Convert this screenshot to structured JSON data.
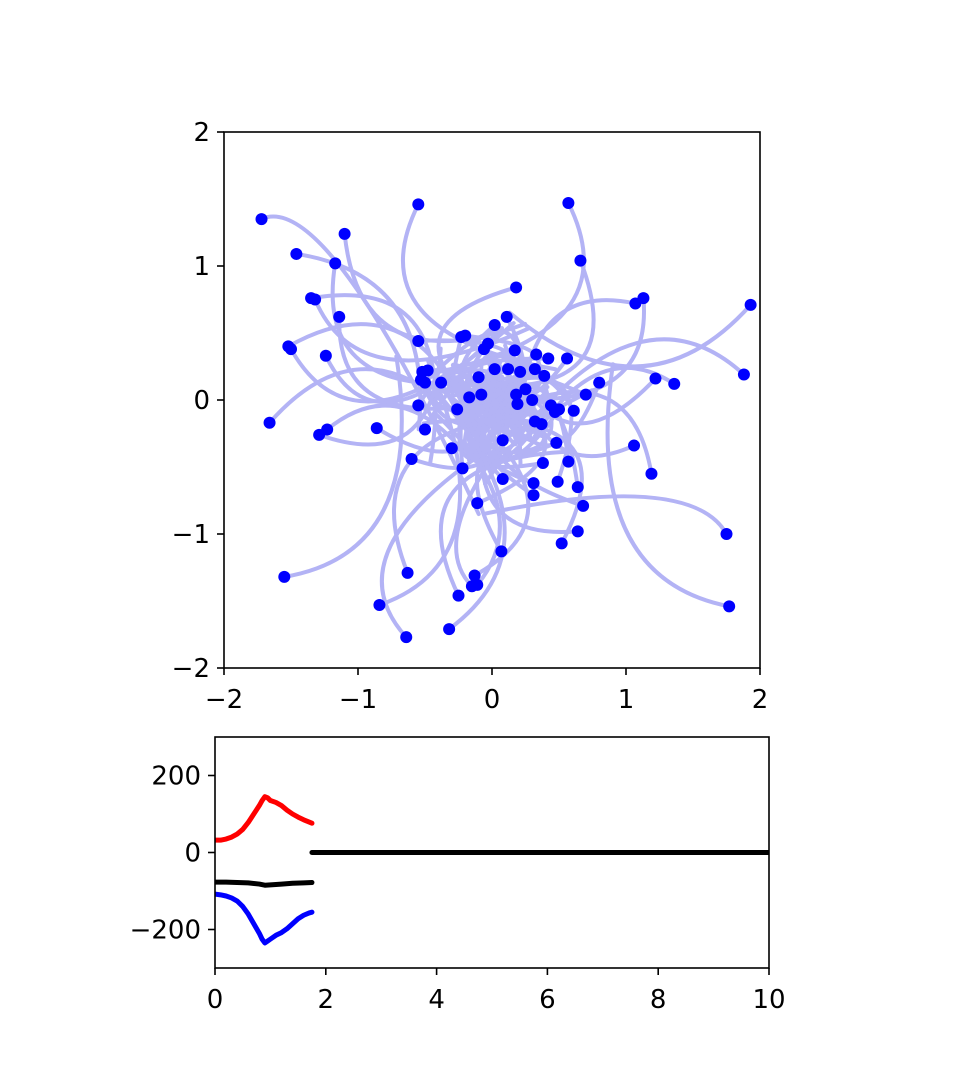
{
  "chart_data": [
    {
      "type": "scatter",
      "title": "",
      "xlabel": "",
      "ylabel": "",
      "xlim": [
        -2,
        2
      ],
      "ylim": [
        -2,
        2
      ],
      "xticks": [
        -2,
        -1,
        0,
        1,
        2
      ],
      "yticks": [
        -2,
        -1,
        0,
        1,
        2
      ],
      "xtick_labels": [
        "−2",
        "−1",
        "0",
        "1",
        "2"
      ],
      "ytick_labels": [
        "−2",
        "−1",
        "0",
        "1",
        "2"
      ],
      "grid": false,
      "trail_color": "#b3b3f5",
      "point_color": "#0000ff",
      "points": [
        [
          -1.72,
          1.35
        ],
        [
          -0.55,
          1.46
        ],
        [
          0.57,
          1.47
        ],
        [
          -1.1,
          1.24
        ],
        [
          -1.46,
          1.09
        ],
        [
          -1.17,
          1.02
        ],
        [
          0.66,
          1.04
        ],
        [
          0.18,
          0.84
        ],
        [
          -1.35,
          0.76
        ],
        [
          -1.32,
          0.75
        ],
        [
          1.13,
          0.76
        ],
        [
          1.07,
          0.72
        ],
        [
          1.93,
          0.71
        ],
        [
          -1.14,
          0.62
        ],
        [
          0.11,
          0.62
        ],
        [
          0.02,
          0.56
        ],
        [
          -1.52,
          0.4
        ],
        [
          -1.5,
          0.38
        ],
        [
          -0.55,
          0.44
        ],
        [
          -0.23,
          0.47
        ],
        [
          -0.2,
          0.48
        ],
        [
          -0.03,
          0.42
        ],
        [
          -0.06,
          0.38
        ],
        [
          -1.24,
          0.33
        ],
        [
          0.33,
          0.34
        ],
        [
          0.42,
          0.31
        ],
        [
          0.56,
          0.31
        ],
        [
          0.17,
          0.37
        ],
        [
          0.02,
          0.23
        ],
        [
          0.12,
          0.23
        ],
        [
          0.21,
          0.21
        ],
        [
          0.32,
          0.23
        ],
        [
          0.39,
          0.18
        ],
        [
          -0.52,
          0.21
        ],
        [
          -0.48,
          0.22
        ],
        [
          -0.53,
          0.15
        ],
        [
          -0.5,
          0.13
        ],
        [
          -0.38,
          0.13
        ],
        [
          -0.1,
          0.17
        ],
        [
          1.88,
          0.19
        ],
        [
          1.22,
          0.16
        ],
        [
          1.36,
          0.12
        ],
        [
          0.8,
          0.13
        ],
        [
          0.25,
          0.08
        ],
        [
          0.18,
          0.04
        ],
        [
          -0.08,
          0.04
        ],
        [
          -0.17,
          0.02
        ],
        [
          0.7,
          0.04
        ],
        [
          -0.55,
          -0.04
        ],
        [
          -0.26,
          -0.07
        ],
        [
          0.19,
          -0.03
        ],
        [
          0.3,
          0.0
        ],
        [
          0.44,
          -0.04
        ],
        [
          0.47,
          -0.09
        ],
        [
          0.5,
          -0.07
        ],
        [
          0.61,
          -0.08
        ],
        [
          -1.66,
          -0.17
        ],
        [
          0.32,
          -0.16
        ],
        [
          0.37,
          -0.18
        ],
        [
          -1.29,
          -0.26
        ],
        [
          -1.23,
          -0.22
        ],
        [
          -0.86,
          -0.21
        ],
        [
          -0.5,
          -0.22
        ],
        [
          0.08,
          -0.3
        ],
        [
          0.48,
          -0.32
        ],
        [
          -0.3,
          -0.36
        ],
        [
          1.06,
          -0.34
        ],
        [
          -0.6,
          -0.44
        ],
        [
          0.38,
          -0.47
        ],
        [
          0.57,
          -0.46
        ],
        [
          -0.22,
          -0.51
        ],
        [
          1.19,
          -0.55
        ],
        [
          0.08,
          -0.59
        ],
        [
          0.49,
          -0.61
        ],
        [
          0.31,
          -0.62
        ],
        [
          0.64,
          -0.65
        ],
        [
          0.31,
          -0.71
        ],
        [
          -0.11,
          -0.77
        ],
        [
          0.68,
          -0.79
        ],
        [
          1.75,
          -1.0
        ],
        [
          0.64,
          -0.98
        ],
        [
          0.52,
          -1.07
        ],
        [
          0.07,
          -1.13
        ],
        [
          -1.55,
          -1.32
        ],
        [
          -0.63,
          -1.29
        ],
        [
          -0.13,
          -1.31
        ],
        [
          -0.15,
          -1.39
        ],
        [
          -0.11,
          -1.38
        ],
        [
          -0.25,
          -1.46
        ],
        [
          -0.84,
          -1.53
        ],
        [
          1.77,
          -1.54
        ],
        [
          -0.32,
          -1.71
        ],
        [
          -0.64,
          -1.77
        ]
      ]
    },
    {
      "type": "line",
      "title": "",
      "xlabel": "",
      "ylabel": "",
      "xlim": [
        0,
        10
      ],
      "ylim": [
        -300,
        300
      ],
      "xticks": [
        0,
        2,
        4,
        6,
        8,
        10
      ],
      "yticks": [
        -200,
        0,
        200
      ],
      "xtick_labels": [
        "0",
        "2",
        "4",
        "6",
        "8",
        "10"
      ],
      "ytick_labels": [
        "−200",
        "0",
        "200"
      ],
      "grid": false,
      "series": [
        {
          "color": "#ff0000",
          "x": [
            0.0,
            0.1,
            0.2,
            0.3,
            0.4,
            0.5,
            0.6,
            0.7,
            0.8,
            0.85,
            0.9,
            0.95,
            1.0,
            1.1,
            1.2,
            1.3,
            1.4,
            1.5,
            1.6,
            1.7,
            1.75
          ],
          "y": [
            32,
            32,
            35,
            40,
            48,
            60,
            78,
            100,
            122,
            135,
            145,
            142,
            135,
            130,
            122,
            110,
            100,
            92,
            85,
            79,
            76
          ]
        },
        {
          "color": "#0000ff",
          "x": [
            0.0,
            0.1,
            0.2,
            0.3,
            0.4,
            0.5,
            0.6,
            0.7,
            0.8,
            0.85,
            0.9,
            0.95,
            1.0,
            1.1,
            1.2,
            1.3,
            1.4,
            1.5,
            1.6,
            1.7,
            1.75
          ],
          "y": [
            -108,
            -110,
            -113,
            -118,
            -126,
            -140,
            -160,
            -185,
            -210,
            -225,
            -235,
            -230,
            -225,
            -215,
            -208,
            -198,
            -185,
            -172,
            -163,
            -157,
            -155
          ]
        },
        {
          "color": "#000000",
          "x": [
            0.0,
            0.2,
            0.4,
            0.6,
            0.8,
            0.9,
            1.0,
            1.2,
            1.4,
            1.6,
            1.75
          ],
          "y": [
            -77,
            -77,
            -78,
            -79,
            -82,
            -85,
            -84,
            -82,
            -80,
            -79,
            -78
          ]
        },
        {
          "color": "#000000",
          "x": [
            1.75,
            2,
            3,
            4,
            5,
            6,
            7,
            8,
            9,
            10
          ],
          "y": [
            0,
            0,
            0,
            0,
            0,
            0,
            0,
            0,
            0,
            0
          ]
        }
      ]
    }
  ]
}
